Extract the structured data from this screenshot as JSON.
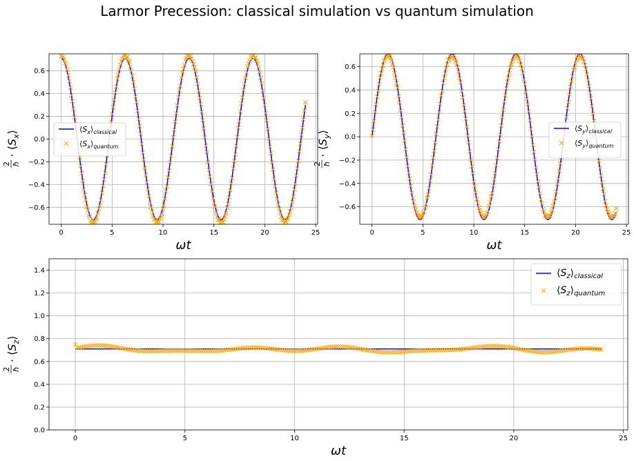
{
  "figure": {
    "title": "Larmor Precession: classical simulation vs quantum simulation"
  },
  "colors": {
    "classical": "#0000ff",
    "quantum": "#ffa500",
    "grid": "#b0b0b0"
  },
  "chart_data": [
    {
      "id": "sx",
      "type": "line",
      "xlabel": "ωt",
      "ylabel": "2/ħ · ⟨Sx⟩",
      "ylabel_parts": {
        "frac_num": "2",
        "frac_den": "ħ",
        "dot": "·",
        "open": "⟨",
        "var": "S",
        "sub": "x",
        "close": "⟩"
      },
      "xlim": [
        -1.2,
        25.2
      ],
      "ylim": [
        -0.75,
        0.75
      ],
      "xticks": [
        0,
        5,
        10,
        15,
        20,
        25
      ],
      "yticks": [
        -0.6,
        -0.4,
        -0.2,
        0.0,
        0.2,
        0.4,
        0.6
      ],
      "ytick_labels": [
        "−0.6",
        "−0.4",
        "−0.2",
        "0.0",
        "0.2",
        "0.4",
        "0.6"
      ],
      "grid": true,
      "legend_position": "center-left",
      "series": [
        {
          "name": "⟨Sx⟩classical",
          "name_parts": {
            "main": "⟨S",
            "sub1": "x",
            "mid": "⟩",
            "sub2": "classical"
          },
          "style": "line",
          "color": "#0000ff",
          "model": {
            "amp": 0.71,
            "omega": 1.0,
            "phase": 0.0,
            "func": "cos",
            "x_start": 0,
            "x_end": 24
          }
        },
        {
          "name": "⟨Sx⟩quantum",
          "name_parts": {
            "main": "⟨S",
            "sub1": "x",
            "mid": "⟩",
            "sub2": "quantum"
          },
          "style": "marker-x",
          "color": "#ffa500",
          "model": {
            "amp": 0.72,
            "omega": 1.0,
            "phase": 0.0,
            "func": "cos",
            "x_start": 0,
            "x_end": 24,
            "n_points": 240,
            "noise": 0.02
          }
        }
      ]
    },
    {
      "id": "sy",
      "type": "line",
      "xlabel": "ωt",
      "ylabel": "2/ħ · ⟨Sy⟩",
      "ylabel_parts": {
        "frac_num": "2",
        "frac_den": "ħ",
        "dot": "·",
        "open": "⟨",
        "var": "S",
        "sub": "y",
        "close": "⟩"
      },
      "xlim": [
        -1.2,
        25.2
      ],
      "ylim": [
        -0.75,
        0.71
      ],
      "xticks": [
        0,
        5,
        10,
        15,
        20,
        25
      ],
      "yticks": [
        -0.6,
        -0.4,
        -0.2,
        0.0,
        0.2,
        0.4,
        0.6
      ],
      "ytick_labels": [
        "−0.6",
        "−0.4",
        "−0.2",
        "0.0",
        "0.2",
        "0.4",
        "0.6"
      ],
      "grid": true,
      "legend_position": "center-right",
      "series": [
        {
          "name": "⟨Sy⟩classical",
          "name_parts": {
            "main": "⟨S",
            "sub1": "y",
            "mid": "⟩",
            "sub2": "classical"
          },
          "style": "line",
          "color": "#0000ff",
          "model": {
            "amp": 0.71,
            "omega": 1.0,
            "phase": 0.0,
            "func": "sin",
            "x_start": 0,
            "x_end": 24
          }
        },
        {
          "name": "⟨Sy⟩quantum",
          "name_parts": {
            "main": "⟨S",
            "sub1": "y",
            "mid": "⟩",
            "sub2": "quantum"
          },
          "style": "marker-x",
          "color": "#ffa500",
          "model": {
            "amp": 0.68,
            "omega": 1.0,
            "phase": 0.0,
            "func": "sin",
            "x_start": 0,
            "x_end": 24,
            "n_points": 240,
            "noise": 0.02
          }
        }
      ]
    },
    {
      "id": "sz",
      "type": "line",
      "xlabel": "ωt",
      "ylabel": "2/ħ · ⟨Sz⟩",
      "ylabel_parts": {
        "frac_num": "2",
        "frac_den": "ħ",
        "dot": "·",
        "open": "⟨",
        "var": "S",
        "sub": "z",
        "close": "⟩"
      },
      "xlim": [
        -1.2,
        25.2
      ],
      "ylim": [
        0.0,
        1.5
      ],
      "xticks": [
        0,
        5,
        10,
        15,
        20,
        25
      ],
      "yticks": [
        0.0,
        0.2,
        0.4,
        0.6,
        0.8,
        1.0,
        1.2,
        1.4
      ],
      "ytick_labels": [
        "0.0",
        "0.2",
        "0.4",
        "0.6",
        "0.8",
        "1.0",
        "1.2",
        "1.4"
      ],
      "grid": true,
      "legend_position": "top-right",
      "series": [
        {
          "name": "⟨Sz⟩classical",
          "name_parts": {
            "main": "⟨S",
            "sub1": "z",
            "mid": "⟩",
            "sub2": "classical"
          },
          "style": "line",
          "color": "#0000ff",
          "model": {
            "const": 0.71,
            "x_start": 0,
            "x_end": 24
          }
        },
        {
          "name": "⟨Sz⟩quantum",
          "name_parts": {
            "main": "⟨S",
            "sub1": "z",
            "mid": "⟩",
            "sub2": "quantum"
          },
          "style": "marker-x",
          "color": "#ffa500",
          "model": {
            "base": 0.705,
            "wiggle": 0.025,
            "start_value": 0.75,
            "x_start": 0,
            "x_end": 24,
            "n_points": 240
          }
        }
      ]
    }
  ]
}
